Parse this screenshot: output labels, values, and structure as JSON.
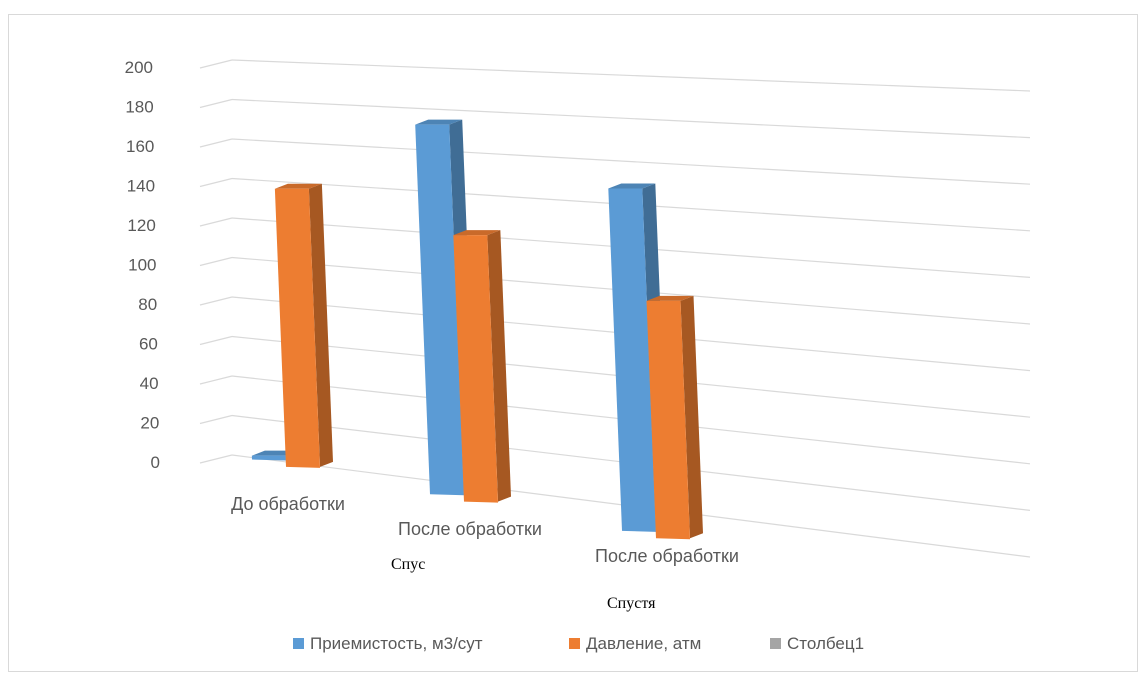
{
  "chart_data": {
    "type": "bar",
    "style": "3d-clustered-column",
    "categories": [
      "До обработки",
      "После обработки",
      "После обработки"
    ],
    "series": [
      {
        "name": "Приемистость, м3/сут",
        "color": "#5b9bd5",
        "values": [
          2,
          190,
          176
        ]
      },
      {
        "name": "Давление, атм",
        "color": "#ed7d31",
        "values": [
          143,
          137,
          122
        ]
      },
      {
        "name": "Столбец1",
        "color": "#a5a5a5",
        "values": [
          0,
          0,
          0
        ]
      }
    ],
    "y_ticks": [
      "0",
      "20",
      "40",
      "60",
      "80",
      "100",
      "120",
      "140",
      "160",
      "180",
      "200"
    ],
    "ylim": [
      0,
      200
    ],
    "grid": true,
    "legend_position": "bottom",
    "annotations": [
      "Спус",
      "Спустя"
    ]
  }
}
